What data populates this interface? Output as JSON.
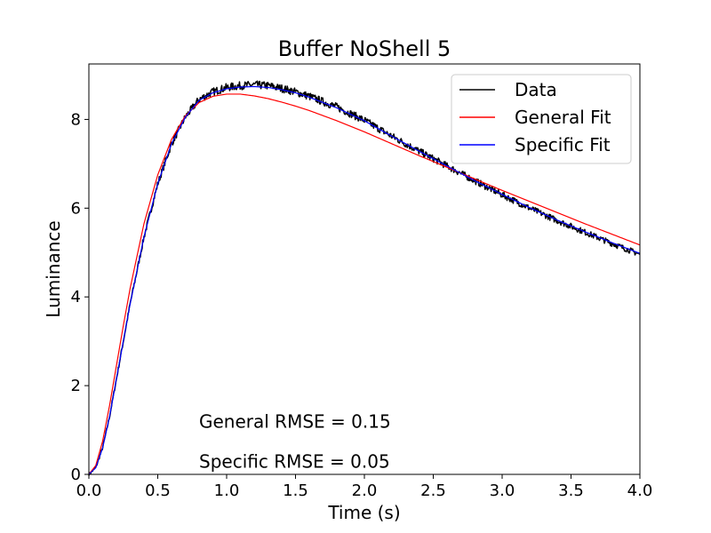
{
  "chart_data": {
    "type": "line",
    "title": "Buffer NoShell 5",
    "xlabel": "Time (s)",
    "ylabel": "Luminance",
    "xlim": [
      0.0,
      4.0
    ],
    "ylim": [
      0.0,
      9.25
    ],
    "xticks": [
      0.0,
      0.5,
      1.0,
      1.5,
      2.0,
      2.5,
      3.0,
      3.5,
      4.0
    ],
    "xtick_labels": [
      "0.0",
      "0.5",
      "1.0",
      "1.5",
      "2.0",
      "2.5",
      "3.0",
      "3.5",
      "4.0"
    ],
    "yticks": [
      0,
      2,
      4,
      6,
      8
    ],
    "ytick_labels": [
      "0",
      "2",
      "4",
      "6",
      "8"
    ],
    "grid": false,
    "legend_position": "top-right",
    "series": [
      {
        "name": "Data",
        "color": "#000000",
        "noisy": true,
        "x": [
          0.0,
          0.05,
          0.1,
          0.15,
          0.2,
          0.25,
          0.3,
          0.4,
          0.5,
          0.6,
          0.7,
          0.8,
          0.9,
          1.0,
          1.1,
          1.2,
          1.3,
          1.4,
          1.5,
          1.6,
          1.8,
          2.0,
          2.2,
          2.4,
          2.6,
          2.8,
          3.0,
          3.2,
          3.4,
          3.6,
          3.8,
          4.0
        ],
        "y": [
          0.0,
          0.15,
          0.6,
          1.3,
          2.15,
          3.0,
          3.85,
          5.35,
          6.55,
          7.45,
          8.05,
          8.45,
          8.62,
          8.72,
          8.76,
          8.78,
          8.76,
          8.7,
          8.62,
          8.52,
          8.28,
          7.98,
          7.62,
          7.28,
          6.95,
          6.62,
          6.3,
          6.0,
          5.72,
          5.46,
          5.2,
          4.96
        ]
      },
      {
        "name": "General Fit",
        "color": "#ff0000",
        "noisy": false,
        "x": [
          0.0,
          0.05,
          0.1,
          0.15,
          0.2,
          0.25,
          0.3,
          0.4,
          0.5,
          0.6,
          0.7,
          0.8,
          0.9,
          1.0,
          1.1,
          1.2,
          1.3,
          1.4,
          1.5,
          1.6,
          1.8,
          2.0,
          2.2,
          2.4,
          2.6,
          2.8,
          3.0,
          3.2,
          3.4,
          3.6,
          3.8,
          4.0
        ],
        "y": [
          0.0,
          0.2,
          0.75,
          1.55,
          2.45,
          3.35,
          4.2,
          5.65,
          6.75,
          7.55,
          8.08,
          8.38,
          8.52,
          8.57,
          8.57,
          8.53,
          8.47,
          8.39,
          8.3,
          8.2,
          7.97,
          7.72,
          7.45,
          7.18,
          6.92,
          6.66,
          6.4,
          6.15,
          5.9,
          5.65,
          5.41,
          5.17
        ]
      },
      {
        "name": "Specific Fit",
        "color": "#0000ff",
        "noisy": false,
        "x": [
          0.0,
          0.05,
          0.1,
          0.15,
          0.2,
          0.25,
          0.3,
          0.4,
          0.5,
          0.6,
          0.7,
          0.8,
          0.9,
          1.0,
          1.1,
          1.2,
          1.3,
          1.4,
          1.5,
          1.6,
          1.8,
          2.0,
          2.2,
          2.4,
          2.6,
          2.8,
          3.0,
          3.2,
          3.4,
          3.6,
          3.8,
          4.0
        ],
        "y": [
          0.0,
          0.15,
          0.6,
          1.3,
          2.15,
          3.0,
          3.85,
          5.35,
          6.55,
          7.45,
          8.05,
          8.43,
          8.6,
          8.69,
          8.73,
          8.74,
          8.72,
          8.67,
          8.6,
          8.5,
          8.26,
          7.97,
          7.62,
          7.28,
          6.95,
          6.62,
          6.31,
          6.01,
          5.73,
          5.47,
          5.22,
          4.98
        ]
      }
    ],
    "annotations": [
      {
        "text": "General RMSE = 0.15",
        "x": 0.8,
        "y": 1.05
      },
      {
        "text": "Specific RMSE = 0.05",
        "x": 0.8,
        "y": 0.15
      }
    ]
  }
}
